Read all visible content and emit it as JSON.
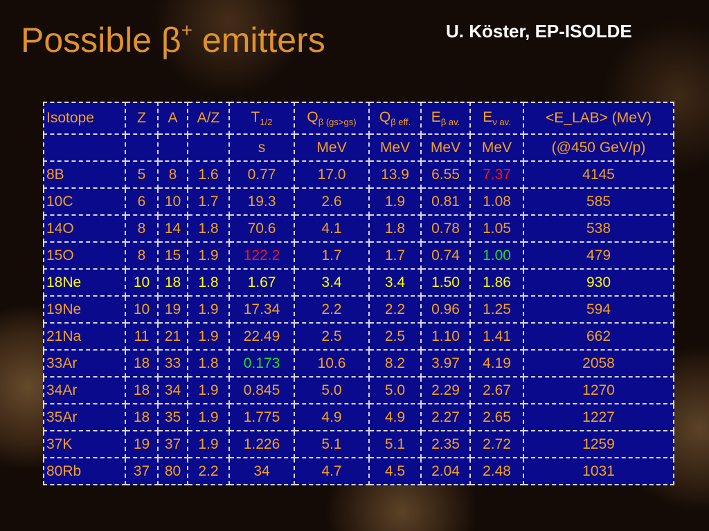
{
  "title": {
    "main": "Possible β",
    "sup": "+",
    "end": "emitters"
  },
  "author": "U. Köster, EP-ISOLDE",
  "table": {
    "headers": [
      {
        "main": "Isotope"
      },
      {
        "main": "Z"
      },
      {
        "main": "A"
      },
      {
        "main": "A/Z"
      },
      {
        "main": "T",
        "sub": "1/2"
      },
      {
        "main": "Q",
        "sub": "β  (gs>gs)"
      },
      {
        "main": "Q",
        "sub": "β  eff."
      },
      {
        "main": "E",
        "sub": "β  av."
      },
      {
        "main": "E",
        "sub": "ν  av."
      },
      {
        "main": "<E_LAB> (MeV)"
      }
    ],
    "units": [
      "s",
      "MeV",
      "MeV",
      "MeV",
      "MeV",
      "(@450 GeV/p)"
    ],
    "rows": [
      [
        "8B",
        "5",
        "8",
        "1.6",
        "0.77",
        "17.0",
        "13.9",
        "6.55",
        "7.37",
        "4145"
      ],
      [
        "10C",
        "6",
        "10",
        "1.7",
        "19.3",
        "2.6",
        "1.9",
        "0.81",
        "1.08",
        "585"
      ],
      [
        "14O",
        "8",
        "14",
        "1.8",
        "70.6",
        "4.1",
        "1.8",
        "0.78",
        "1.05",
        "538"
      ],
      [
        "15O",
        "8",
        "15",
        "1.9",
        "122.2",
        "1.7",
        "1.7",
        "0.74",
        "1.00",
        "479"
      ],
      [
        "18Ne",
        "10",
        "18",
        "1.8",
        "1.67",
        "3.4",
        "3.4",
        "1.50",
        "1.86",
        "930"
      ],
      [
        "19Ne",
        "10",
        "19",
        "1.9",
        "17.34",
        "2.2",
        "2.2",
        "0.96",
        "1.25",
        "594"
      ],
      [
        "21Na",
        "11",
        "21",
        "1.9",
        "22.49",
        "2.5",
        "2.5",
        "1.10",
        "1.41",
        "662"
      ],
      [
        "33Ar",
        "18",
        "33",
        "1.8",
        "0.173",
        "10.6",
        "8.2",
        "3.97",
        "4.19",
        "2058"
      ],
      [
        "34Ar",
        "18",
        "34",
        "1.9",
        "0.845",
        "5.0",
        "5.0",
        "2.29",
        "2.67",
        "1270"
      ],
      [
        "35Ar",
        "18",
        "35",
        "1.9",
        "1.775",
        "4.9",
        "4.9",
        "2.27",
        "2.65",
        "1227"
      ],
      [
        "37K",
        "19",
        "37",
        "1.9",
        "1.226",
        "5.1",
        "5.1",
        "2.35",
        "2.72",
        "1259"
      ],
      [
        "80Rb",
        "37",
        "80",
        "2.2",
        "34",
        "4.7",
        "4.5",
        "2.04",
        "2.48",
        "1031"
      ]
    ],
    "row_colors": [
      {
        "row": 4,
        "color": "#ffff00"
      }
    ],
    "cell_colors": [
      {
        "row": 0,
        "col": 8,
        "color": "#ff1010"
      },
      {
        "row": 3,
        "col": 4,
        "color": "#ff1010"
      },
      {
        "row": 3,
        "col": 8,
        "color": "#20e020"
      },
      {
        "row": 7,
        "col": 4,
        "color": "#20e020"
      }
    ]
  }
}
